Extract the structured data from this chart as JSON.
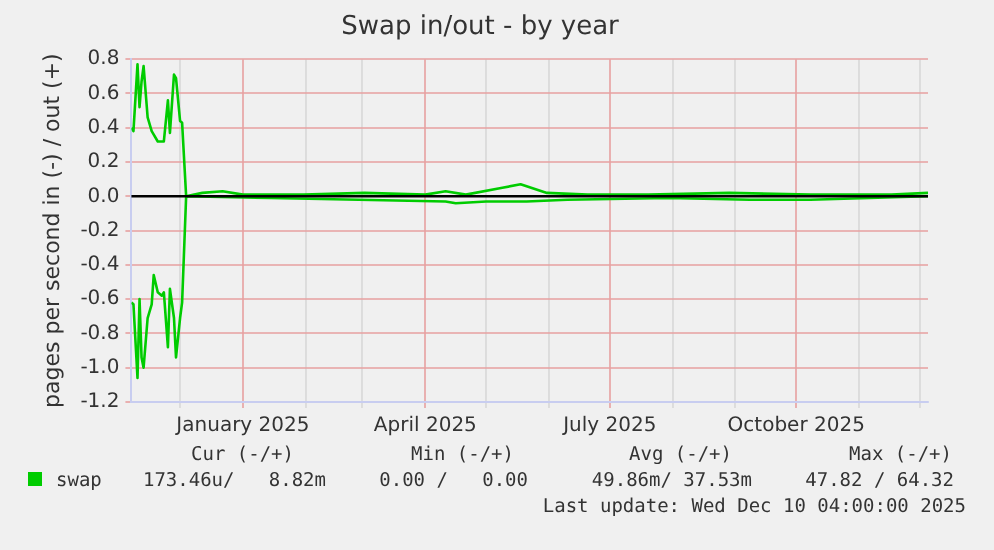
{
  "chart_data": {
    "type": "line",
    "title": "Swap in/out - by year",
    "ylabel": "pages per second in (-) / out (+)",
    "xlim": [
      "2024-11-07",
      "2025-12-05"
    ],
    "xticks": [
      {
        "value": "2024-12-01",
        "label": null
      },
      {
        "value": "2025-01-01",
        "label": "January 2025"
      },
      {
        "value": "2025-02-01",
        "label": null
      },
      {
        "value": "2025-03-01",
        "label": null
      },
      {
        "value": "2025-04-01",
        "label": "April 2025"
      },
      {
        "value": "2025-05-01",
        "label": null
      },
      {
        "value": "2025-06-01",
        "label": null
      },
      {
        "value": "2025-07-01",
        "label": "July 2025"
      },
      {
        "value": "2025-08-01",
        "label": null
      },
      {
        "value": "2025-09-01",
        "label": null
      },
      {
        "value": "2025-10-01",
        "label": "October 2025"
      },
      {
        "value": "2025-11-01",
        "label": null
      },
      {
        "value": "2025-12-01",
        "label": null
      }
    ],
    "ylim": [
      -1.2,
      0.8
    ],
    "yticks": [
      {
        "value": -1.2,
        "label": "-1.2"
      },
      {
        "value": -1,
        "label": "-1.0"
      },
      {
        "value": -0.8,
        "label": "-0.8"
      },
      {
        "value": -0.6,
        "label": "-0.6"
      },
      {
        "value": -0.4,
        "label": "-0.4"
      },
      {
        "value": -0.2,
        "label": "-0.2"
      },
      {
        "value": 0,
        "label": "0.0"
      },
      {
        "value": 0.2,
        "label": "0.2"
      },
      {
        "value": 0.4,
        "label": "0.4"
      },
      {
        "value": 0.6,
        "label": "0.6"
      },
      {
        "value": 0.8,
        "label": "0.8"
      }
    ],
    "grid": true,
    "legend": "bottom",
    "marker": "none",
    "line_style": "solid",
    "ref_lines": [
      {
        "axis": "y",
        "value": 0,
        "color": "#000000"
      }
    ],
    "series": [
      {
        "name": "swap",
        "color": "#00cc00",
        "x": [
          "2024-11-07",
          "2024-11-08",
          "2024-11-10",
          "2024-11-11",
          "2024-11-12",
          "2024-11-13",
          "2024-11-15",
          "2024-11-17",
          "2024-11-20",
          "2024-11-23",
          "2024-11-25",
          "2024-11-26",
          "2024-11-28",
          "2024-11-29",
          "2024-12-01",
          "2024-12-02",
          "2024-12-04",
          "2024-12-12",
          "2024-12-22",
          "2025-01-01",
          "2025-01-31",
          "2025-03-02",
          "2025-04-01",
          "2025-04-11",
          "2025-04-21",
          "2025-05-09",
          "2025-05-18",
          "2025-05-31",
          "2025-06-20",
          "2025-07-20",
          "2025-08-29",
          "2025-10-08",
          "2025-11-17",
          "2025-12-05"
        ],
        "values": [
          0.4,
          0.38,
          0.77,
          0.52,
          0.67,
          0.76,
          0.46,
          0.38,
          0.32,
          0.32,
          0.56,
          0.37,
          0.71,
          0.69,
          0.44,
          0.43,
          0,
          0.02,
          0.03,
          0.01,
          0.01,
          0.02,
          0.01,
          0.03,
          0.01,
          0.05,
          0.07,
          0.02,
          0.01,
          0.01,
          0.02,
          0.01,
          0.01,
          0.02
        ]
      },
      {
        "color": "#00cc00",
        "x": [
          "2024-11-07",
          "2024-11-08",
          "2024-11-10",
          "2024-11-11",
          "2024-11-12",
          "2024-11-13",
          "2024-11-15",
          "2024-11-17",
          "2024-11-18",
          "2024-11-20",
          "2024-11-22",
          "2024-11-23",
          "2024-11-25",
          "2024-11-26",
          "2024-11-28",
          "2024-11-29",
          "2024-12-01",
          "2024-12-02",
          "2024-12-04",
          "2025-01-15",
          "2025-04-11",
          "2025-04-16",
          "2025-05-01",
          "2025-05-21",
          "2025-06-10",
          "2025-07-30",
          "2025-09-08",
          "2025-10-08",
          "2025-12-05"
        ],
        "values": [
          -0.62,
          -0.63,
          -1.06,
          -0.6,
          -0.94,
          -1.0,
          -0.71,
          -0.63,
          -0.46,
          -0.56,
          -0.58,
          -0.56,
          -0.88,
          -0.54,
          -0.71,
          -0.94,
          -0.71,
          -0.62,
          0,
          -0.01,
          -0.03,
          -0.04,
          -0.03,
          -0.03,
          -0.02,
          -0.01,
          -0.02,
          -0.02,
          0
        ]
      }
    ],
    "annotations": [
      "Cur (-/+)",
      "Min (-/+)",
      "Avg (-/+)",
      "Max (-/+)",
      "173.46u/   8.82m",
      "0.00 /   0.00",
      "49.86m/ 37.53m",
      "47.82 / 64.32",
      "Last update: Wed Dec 10 04:00:00 2025"
    ]
  }
}
